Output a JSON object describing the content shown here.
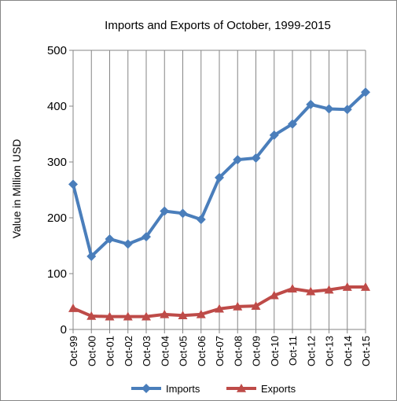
{
  "chart_data": {
    "type": "line",
    "title": "Imports and Exports of October, 1999-2015",
    "xlabel": "",
    "ylabel": "Value in  Million  USD",
    "ylim": [
      0,
      500
    ],
    "yticks": [
      "0",
      "100",
      "200",
      "300",
      "400",
      "500"
    ],
    "grid": "vertical",
    "legend_position": "bottom",
    "categories": [
      "Oct-99",
      "Oct-00",
      "Oct-01",
      "Oct-02",
      "Oct-03",
      "Oct-04",
      "Oct-05",
      "Oct-06",
      "Oct-07",
      "Oct-08",
      "Oct-09",
      "Oct-10",
      "Oct-11",
      "Oct-12",
      "Oct-13",
      "Oct-14",
      "Oct-15"
    ],
    "series": [
      {
        "name": "Imports",
        "color": "#4a7ebb",
        "marker": "diamond",
        "values": [
          260,
          131,
          162,
          153,
          166,
          212,
          208,
          197,
          272,
          304,
          307,
          348,
          368,
          403,
          395,
          394,
          425
        ]
      },
      {
        "name": "Exports",
        "color": "#be4b48",
        "marker": "triangle",
        "values": [
          38,
          24,
          23,
          23,
          23,
          27,
          25,
          27,
          37,
          41,
          42,
          61,
          73,
          68,
          71,
          76,
          76
        ]
      }
    ]
  }
}
